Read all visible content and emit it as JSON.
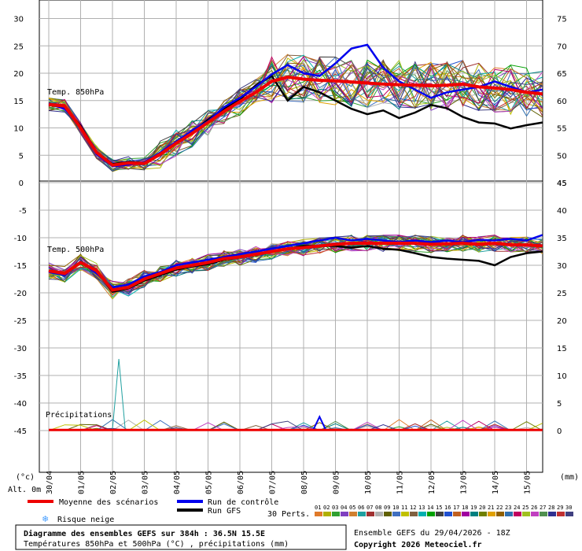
{
  "chart_data": {
    "type": "line",
    "x_dates": [
      "30/04",
      "01/05",
      "02/05",
      "03/05",
      "04/05",
      "05/05",
      "06/05",
      "07/05",
      "08/05",
      "09/05",
      "10/05",
      "11/05",
      "12/05",
      "13/05",
      "14/05",
      "15/05"
    ],
    "t850": {
      "label": "Temp. 850hPa",
      "left_ticks": [
        0,
        5,
        10,
        15,
        20,
        25,
        30
      ],
      "right_ticks": [
        45,
        50,
        55,
        60,
        65,
        70,
        75
      ],
      "mean": [
        [
          0,
          14.3
        ],
        [
          0.5,
          14.0
        ],
        [
          1,
          10
        ],
        [
          1.5,
          5.5
        ],
        [
          2,
          3.2
        ],
        [
          2.5,
          3.6
        ],
        [
          3,
          3.5
        ],
        [
          3.5,
          5.2
        ],
        [
          4,
          7.2
        ],
        [
          4.5,
          9.0
        ],
        [
          5,
          11.0
        ],
        [
          5.5,
          13.0
        ],
        [
          6,
          14.8
        ],
        [
          6.5,
          16.5
        ],
        [
          7,
          18.5
        ],
        [
          7.5,
          19.3
        ],
        [
          8,
          18.9
        ],
        [
          8.5,
          18.7
        ],
        [
          9,
          18.6
        ],
        [
          9.5,
          18.4
        ],
        [
          10,
          18.2
        ],
        [
          10.5,
          18.0
        ],
        [
          11,
          17.9
        ],
        [
          11.5,
          17.8
        ],
        [
          12,
          17.7
        ],
        [
          12.5,
          17.8
        ],
        [
          13,
          18.0
        ],
        [
          13.5,
          17.5
        ],
        [
          14,
          17.3
        ],
        [
          14.5,
          17.0
        ],
        [
          15,
          16.5
        ],
        [
          15.5,
          16.2
        ]
      ],
      "control": [
        [
          0,
          14.5
        ],
        [
          0.5,
          13.5
        ],
        [
          1,
          10.2
        ],
        [
          1.5,
          5.2
        ],
        [
          2,
          3.0
        ],
        [
          2.5,
          3.3
        ],
        [
          3,
          3.7
        ],
        [
          3.5,
          5.5
        ],
        [
          4,
          7.5
        ],
        [
          4.5,
          9.5
        ],
        [
          5,
          11.2
        ],
        [
          5.5,
          13.8
        ],
        [
          6,
          15.5
        ],
        [
          6.5,
          17.5
        ],
        [
          7,
          19.8
        ],
        [
          7.5,
          21.5
        ],
        [
          8,
          20.0
        ],
        [
          8.5,
          19.5
        ],
        [
          9,
          21.8
        ],
        [
          9.5,
          24.5
        ],
        [
          10,
          25.2
        ],
        [
          10.5,
          21.0
        ],
        [
          11,
          18.5
        ],
        [
          11.5,
          17.0
        ],
        [
          12,
          15.5
        ],
        [
          12.5,
          16.5
        ],
        [
          13,
          17.0
        ],
        [
          13.5,
          17.5
        ],
        [
          14,
          18.5
        ],
        [
          14.5,
          17.5
        ],
        [
          15,
          16.5
        ],
        [
          15.5,
          17.0
        ]
      ],
      "gfs": [
        [
          0,
          14.2
        ],
        [
          0.5,
          13.8
        ],
        [
          1,
          10.4
        ],
        [
          1.5,
          5.6
        ],
        [
          2,
          3.4
        ],
        [
          2.5,
          3.8
        ],
        [
          3,
          3.6
        ],
        [
          3.5,
          5.3
        ],
        [
          4,
          7.3
        ],
        [
          4.5,
          9.2
        ],
        [
          5,
          11.5
        ],
        [
          5.5,
          13.5
        ],
        [
          6,
          15.2
        ],
        [
          6.5,
          17.8
        ],
        [
          7,
          19.5
        ],
        [
          7.5,
          15.0
        ],
        [
          8,
          17.5
        ],
        [
          8.5,
          16.5
        ],
        [
          9,
          15.0
        ],
        [
          9.5,
          13.5
        ],
        [
          10,
          12.5
        ],
        [
          10.5,
          13.2
        ],
        [
          11,
          11.8
        ],
        [
          11.5,
          12.8
        ],
        [
          12,
          14.2
        ],
        [
          12.5,
          13.6
        ],
        [
          13,
          12.0
        ],
        [
          13.5,
          11.0
        ],
        [
          14,
          10.8
        ],
        [
          14.5,
          9.9
        ],
        [
          15,
          10.5
        ],
        [
          15.5,
          11.0
        ]
      ]
    },
    "t500": {
      "label": "Temp. 500hPa",
      "left_ticks": [
        -5,
        -10,
        -15,
        -20,
        -25,
        -30,
        -35,
        -40,
        -45
      ],
      "right_ticks": [
        45,
        40,
        35,
        30,
        25,
        20,
        15,
        10,
        5,
        0
      ],
      "mean": [
        [
          0,
          -16.0
        ],
        [
          0.5,
          -16.5
        ],
        [
          1,
          -14.5
        ],
        [
          1.5,
          -16.0
        ],
        [
          2,
          -19.5
        ],
        [
          2.5,
          -19.0
        ],
        [
          3,
          -17.5
        ],
        [
          3.5,
          -16.5
        ],
        [
          4,
          -15.5
        ],
        [
          4.5,
          -15.0
        ],
        [
          5,
          -14.5
        ],
        [
          5.5,
          -13.8
        ],
        [
          6,
          -13.5
        ],
        [
          6.5,
          -13.0
        ],
        [
          7,
          -12.5
        ],
        [
          7.5,
          -12.0
        ],
        [
          8,
          -11.8
        ],
        [
          8.5,
          -11.5
        ],
        [
          9,
          -11.2
        ],
        [
          9.5,
          -11.0
        ],
        [
          10,
          -11.0
        ],
        [
          10.5,
          -11.0
        ],
        [
          11,
          -11.0
        ],
        [
          11.5,
          -11.0
        ],
        [
          12,
          -11.2
        ],
        [
          12.5,
          -11.1
        ],
        [
          13,
          -11.0
        ],
        [
          13.5,
          -11.2
        ],
        [
          14,
          -11.0
        ],
        [
          14.5,
          -11.3
        ],
        [
          15,
          -11.3
        ],
        [
          15.5,
          -11.5
        ]
      ],
      "control": [
        [
          0,
          -16.2
        ],
        [
          0.5,
          -16.8
        ],
        [
          1,
          -14.3
        ],
        [
          1.5,
          -16.5
        ],
        [
          2,
          -19.0
        ],
        [
          2.5,
          -18.5
        ],
        [
          3,
          -17.0
        ],
        [
          3.5,
          -16.2
        ],
        [
          4,
          -15.0
        ],
        [
          4.5,
          -14.5
        ],
        [
          5,
          -14.0
        ],
        [
          5.5,
          -13.5
        ],
        [
          6,
          -13.0
        ],
        [
          6.5,
          -12.5
        ],
        [
          7,
          -12.0
        ],
        [
          7.5,
          -11.5
        ],
        [
          8,
          -11.0
        ],
        [
          8.5,
          -10.5
        ],
        [
          9,
          -10.0
        ],
        [
          9.5,
          -10.5
        ],
        [
          10,
          -10.2
        ],
        [
          10.5,
          -10.5
        ],
        [
          11,
          -10.8
        ],
        [
          11.5,
          -10.5
        ],
        [
          12,
          -10.8
        ],
        [
          12.5,
          -10.5
        ],
        [
          13,
          -10.8
        ],
        [
          13.5,
          -10.4
        ],
        [
          14,
          -10.5
        ],
        [
          14.5,
          -10.2
        ],
        [
          15,
          -10.5
        ],
        [
          15.5,
          -9.5
        ]
      ],
      "gfs": [
        [
          0,
          -16.0
        ],
        [
          0.5,
          -16.5
        ],
        [
          1,
          -14.5
        ],
        [
          1.5,
          -16.0
        ],
        [
          2,
          -19.8
        ],
        [
          2.5,
          -19.2
        ],
        [
          3,
          -17.8
        ],
        [
          3.5,
          -16.8
        ],
        [
          4,
          -15.8
        ],
        [
          4.5,
          -15.2
        ],
        [
          5,
          -14.8
        ],
        [
          5.5,
          -14.0
        ],
        [
          6,
          -13.6
        ],
        [
          6.5,
          -13.0
        ],
        [
          7,
          -12.5
        ],
        [
          7.5,
          -12.0
        ],
        [
          8,
          -11.5
        ],
        [
          8.5,
          -11.5
        ],
        [
          9,
          -11.5
        ],
        [
          9.5,
          -11.8
        ],
        [
          10,
          -11.5
        ],
        [
          10.5,
          -12.0
        ],
        [
          11,
          -12.2
        ],
        [
          11.5,
          -12.8
        ],
        [
          12,
          -13.5
        ],
        [
          12.5,
          -13.8
        ],
        [
          13,
          -14.0
        ],
        [
          13.5,
          -14.2
        ],
        [
          14,
          -15.0
        ],
        [
          14.5,
          -13.5
        ],
        [
          15,
          -12.8
        ],
        [
          15.5,
          -12.5
        ]
      ]
    },
    "precip": {
      "label": "Précipitations",
      "peak_mm": 13,
      "control_peak_mm": 2.5,
      "mean_mm": 0.1
    },
    "units": {
      "left": "(°c)",
      "right": "(mm)",
      "alt": "Alt. 0m"
    }
  },
  "legend": {
    "mean": "Moyenne des scénarios",
    "control": "Run de contrôle",
    "gfs": "Run GFS",
    "snow": "Risque neige",
    "perts_label": "30 Perts.",
    "perts_numbers": [
      "01",
      "02",
      "03",
      "04",
      "05",
      "06",
      "07",
      "08",
      "09",
      "10",
      "11",
      "12",
      "13",
      "14",
      "15",
      "16",
      "17",
      "18",
      "19",
      "20",
      "21",
      "22",
      "23",
      "24",
      "25",
      "26",
      "27",
      "28",
      "29",
      "30"
    ],
    "perts_colors": [
      "#e07a2a",
      "#b0b000",
      "#30a030",
      "#8040c0",
      "#d08030",
      "#20a0a0",
      "#a03030",
      "#b0b0b0",
      "#606000",
      "#4070c0",
      "#c0c000",
      "#806040",
      "#00b0b0",
      "#00a000",
      "#404040",
      "#2050d0",
      "#c06020",
      "#a000a0",
      "#008080",
      "#708000",
      "#e0a000",
      "#906000",
      "#3070b0",
      "#c00060",
      "#a0c020",
      "#c040c0",
      "#509050",
      "#303090",
      "#c03030",
      "#404080"
    ]
  },
  "footer": {
    "title": "Diagramme des ensembles GEFS sur 384h : 36.5N 15.5E",
    "subtitle": "Températures 850hPa et 500hPa (°C) , précipitations (mm)",
    "run": "Ensemble GEFS du 29/04/2026 - 18Z",
    "copyright": "Copyright 2026 Meteociel.fr"
  },
  "colors": {
    "mean": "#ee0000",
    "control": "#0000ee",
    "gfs": "#000000",
    "grid": "#b0b0b0"
  }
}
